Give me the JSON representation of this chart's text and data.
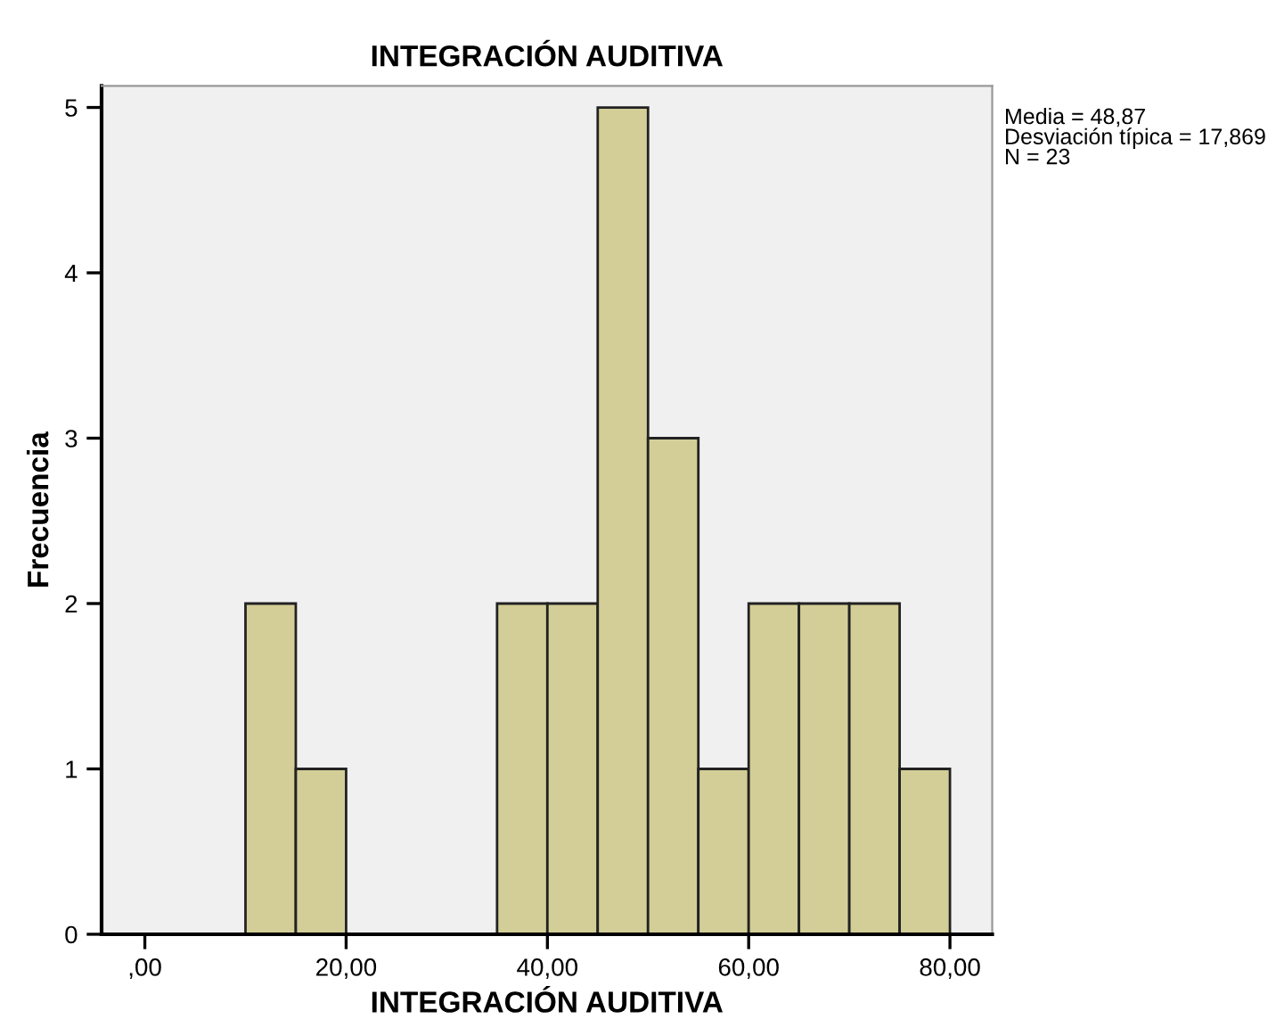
{
  "chart_data": {
    "type": "histogram",
    "title": "INTEGRACIÓN AUDITIVA",
    "xlabel": "INTEGRACIÓN AUDITIVA",
    "ylabel": "Frecuencia",
    "bins": [
      10,
      15,
      20,
      25,
      30,
      35,
      40,
      45,
      50,
      55,
      60,
      65,
      70,
      75,
      80
    ],
    "values": [
      2,
      1,
      0,
      0,
      0,
      2,
      2,
      5,
      3,
      1,
      2,
      2,
      2,
      1
    ],
    "color": "#d3ce97",
    "xlim": [
      -4.3,
      84.2
    ],
    "xticks": [
      {
        "value": 0,
        "label": ",00"
      },
      {
        "value": 20,
        "label": "20,00"
      },
      {
        "value": 40,
        "label": "40,00"
      },
      {
        "value": 60,
        "label": "60,00"
      },
      {
        "value": 80,
        "label": "80,00"
      }
    ],
    "ylim": [
      0,
      5.13
    ],
    "yticks": [
      0,
      1,
      2,
      3,
      4,
      5
    ],
    "grid": false,
    "legend": false,
    "annotations": [
      "Media = 48,87\nDesviación típica = 17,869\nN = 23"
    ]
  }
}
